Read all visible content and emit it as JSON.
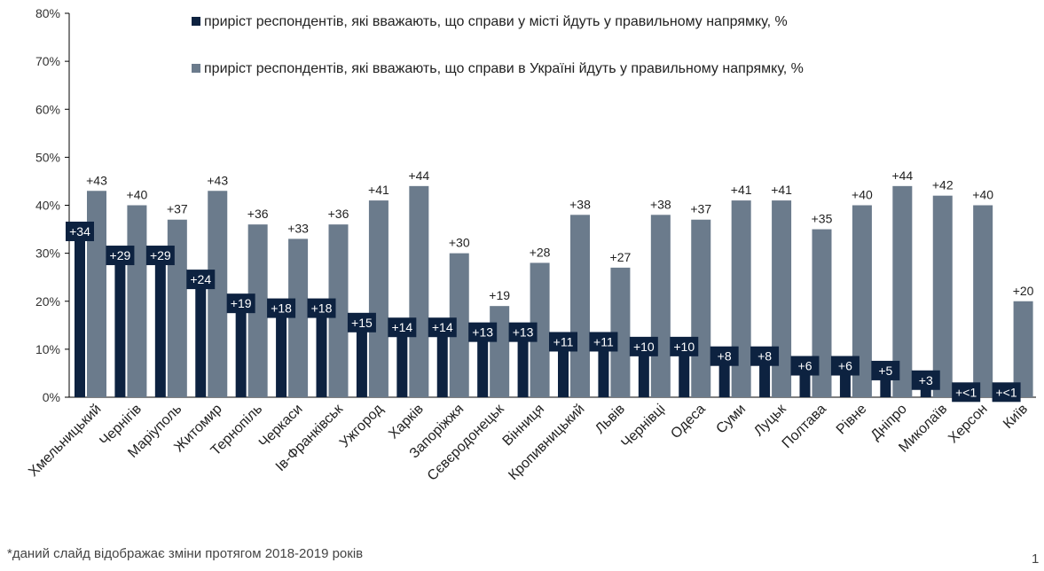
{
  "chart_data": {
    "type": "bar",
    "categories": [
      "Хмельницький",
      "Чернігів",
      "Маріуполь",
      "Житомир",
      "Тернопіль",
      "Черкаси",
      "Ів-Франківськ",
      "Ужгород",
      "Харків",
      "Запоріжжя",
      "Сєвєродонецьк",
      "Вінниця",
      "Кропивницький",
      "Львів",
      "Чернівці",
      "Одеса",
      "Суми",
      "Луцьк",
      "Полтава",
      "Рівне",
      "Дніпро",
      "Миколаїв",
      "Херсон",
      "Київ"
    ],
    "series": [
      {
        "name": "приріст респондентів, які вважають, що справи у місті йдуть у правильному напрямку, %",
        "color": "#0d2240",
        "values": [
          34,
          29,
          29,
          24,
          19,
          18,
          18,
          15,
          14,
          14,
          13,
          13,
          11,
          11,
          10,
          10,
          8,
          8,
          6,
          6,
          5,
          3,
          0.5,
          0.5
        ],
        "labels": [
          "+34",
          "+29",
          "+29",
          "+24",
          "+19",
          "+18",
          "+18",
          "+15",
          "+14",
          "+14",
          "+13",
          "+13",
          "+11",
          "+11",
          "+10",
          "+10",
          "+8",
          "+8",
          "+6",
          "+6",
          "+5",
          "+3",
          "+<1",
          "+<1"
        ]
      },
      {
        "name": "приріст респондентів, які вважають, що справи в Україні йдуть у правильному напрямку, %",
        "color": "#6b7b8c",
        "values": [
          43,
          40,
          37,
          43,
          36,
          33,
          36,
          41,
          44,
          30,
          19,
          28,
          38,
          27,
          38,
          37,
          41,
          41,
          35,
          40,
          44,
          42,
          40,
          20
        ],
        "labels": [
          "+43",
          "+40",
          "+37",
          "+43",
          "+36",
          "+33",
          "+36",
          "+41",
          "+44",
          "+30",
          "+19",
          "+28",
          "+38",
          "+27",
          "+38",
          "+37",
          "+41",
          "+41",
          "+35",
          "+40",
          "+44",
          "+42",
          "+40",
          "+20"
        ]
      }
    ],
    "ylim": [
      0,
      80
    ],
    "yticks": [
      0,
      10,
      20,
      30,
      40,
      50,
      60,
      70,
      80
    ],
    "ytick_labels": [
      "0%",
      "10%",
      "20%",
      "30%",
      "40%",
      "50%",
      "60%",
      "70%",
      "80%"
    ],
    "legend_position": "top-center",
    "grid": false
  },
  "footnote": "*даний слайд відображає зміни протягом  2018-2019 років",
  "page_number": "1"
}
